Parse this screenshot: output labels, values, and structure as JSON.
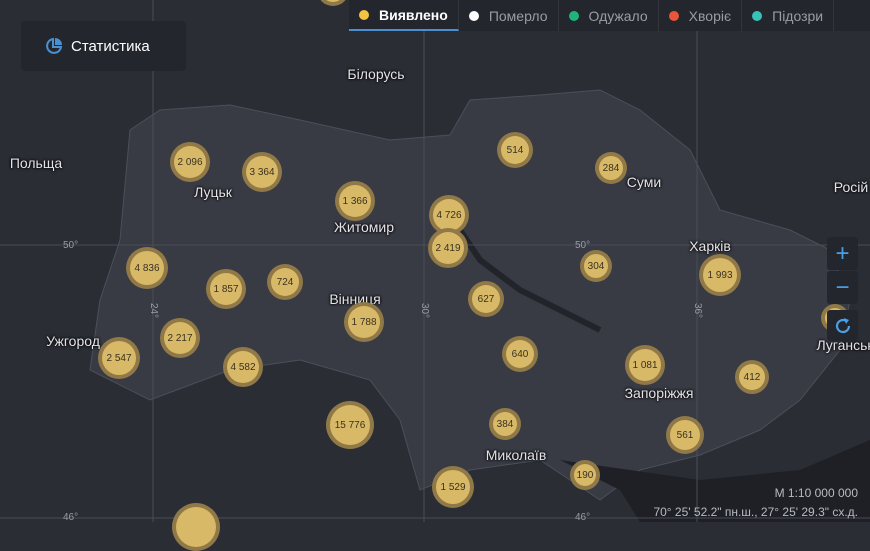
{
  "stats_button": {
    "label": "Статистика",
    "icon": "pie-chart-icon"
  },
  "tabs": [
    {
      "label": "Виявлено",
      "color": "#f5c242",
      "active": true
    },
    {
      "label": "Померло",
      "color": "#ffffff"
    },
    {
      "label": "Одужало",
      "color": "#1fb57a"
    },
    {
      "label": "Хворіє",
      "color": "#e8553a"
    },
    {
      "label": "Підозри",
      "color": "#36c2b8"
    }
  ],
  "places": [
    "Білорусь",
    "Польща",
    "Луцьк",
    "Житомир",
    "Суми",
    "Росій",
    "Харків",
    "Вінниця",
    "Ужгород",
    "Запоріжжя",
    "Луганськ",
    "Миколаїв"
  ],
  "grid": {
    "lat": [
      "50°",
      "46°"
    ],
    "lon": [
      "24°",
      "30°",
      "36°"
    ]
  },
  "clusters": [
    "2 096",
    "3 364",
    "1 366",
    "4 726",
    "514",
    "284",
    "4 836",
    "1 857",
    "724",
    "2 419",
    "304",
    "1 993",
    "627",
    "1 788",
    "2 217",
    "2 547",
    "4 582",
    "640",
    "1 081",
    "412",
    "15 776",
    "384",
    "561",
    "190",
    "1 529"
  ],
  "controls": {
    "zoom_in": "+",
    "zoom_out": "−"
  },
  "scale": "М 1:10 000 000",
  "coords": "70° 25' 52.2\" пн.ш., 27° 25' 29.3\" сх.д.",
  "colors": {
    "bubble": "#d8b968",
    "background": "#2b2d35",
    "region": "#383a44",
    "accent": "#4a8fcf"
  }
}
